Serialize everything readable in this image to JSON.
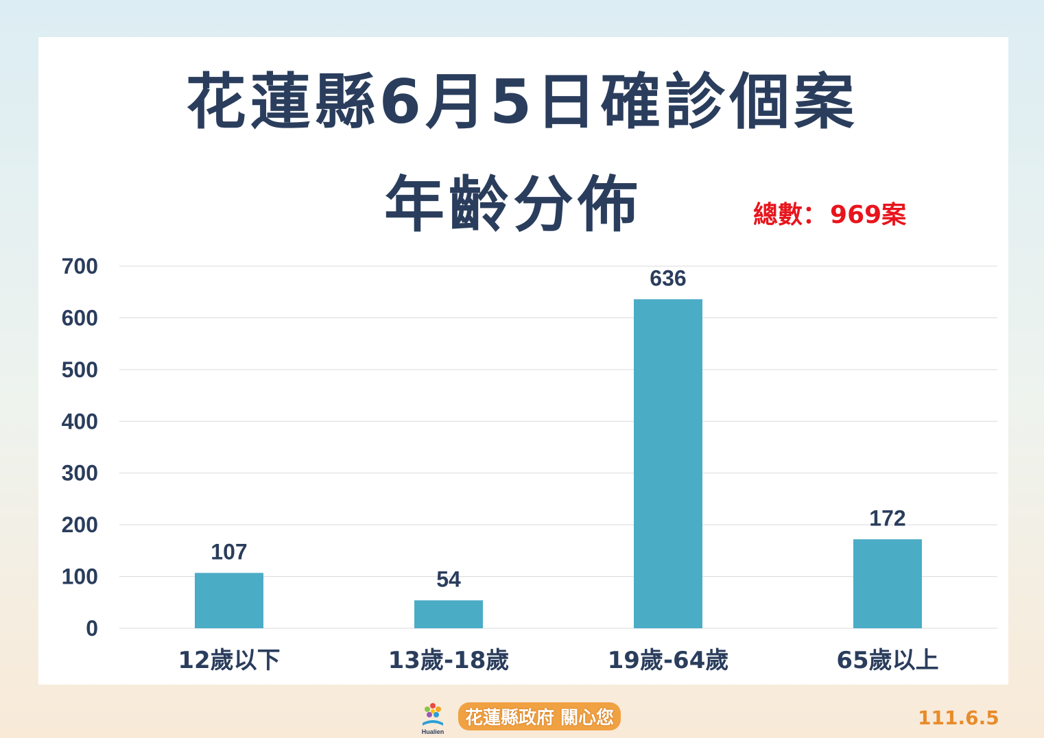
{
  "header": {
    "title_line1": "花蓮縣6月5日確診個案",
    "title_line2": "年齡分佈",
    "total_label": "總數：",
    "total_value": "969案"
  },
  "footer": {
    "logo_caption": "Hualien",
    "text": "花蓮縣政府 關心您",
    "date": "111.6.5"
  },
  "colors": {
    "bar": "#4bacc6",
    "title": "#2a3d5c",
    "total": "#e8141c",
    "gridline": "#d9d9d9"
  },
  "chart_data": {
    "type": "bar",
    "categories": [
      "12歲以下",
      "13歲-18歲",
      "19歲-64歲",
      "65歲以上"
    ],
    "values": [
      107,
      54,
      636,
      172
    ],
    "data_labels": [
      "107",
      "54",
      "636",
      "172"
    ],
    "y_ticks": [
      "0",
      "100",
      "200",
      "300",
      "400",
      "500",
      "600",
      "700"
    ],
    "ylim": [
      0,
      700
    ],
    "grid": true,
    "legend": "none"
  }
}
